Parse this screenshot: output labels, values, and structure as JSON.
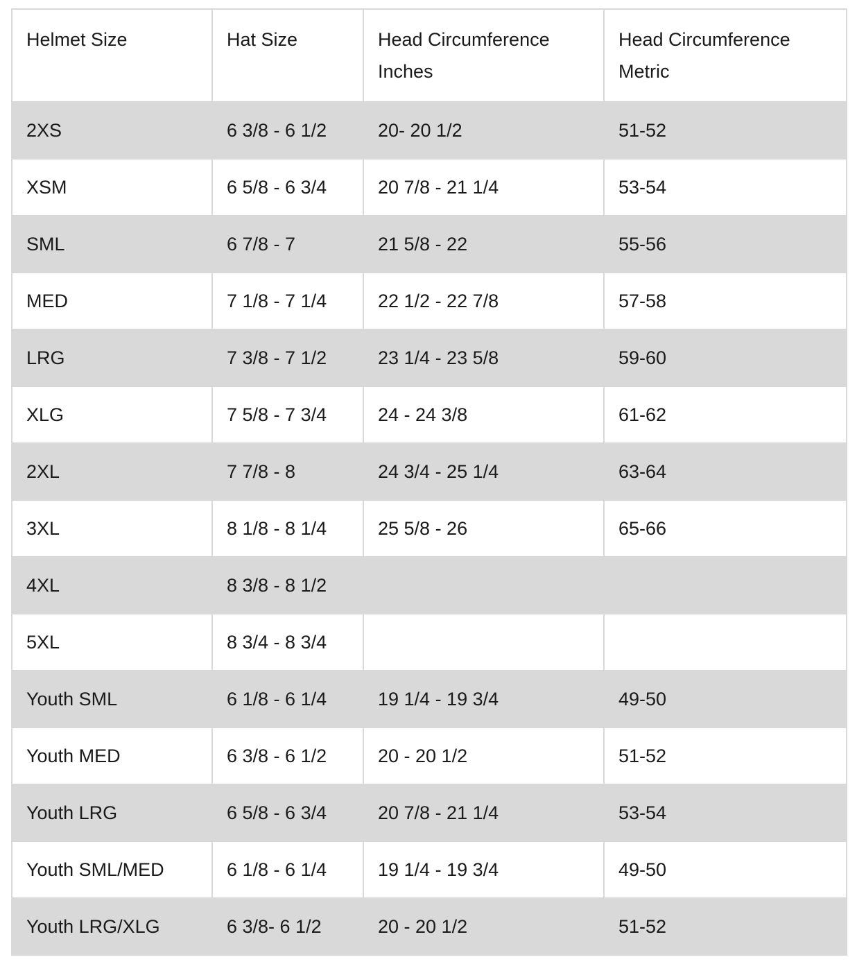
{
  "chart_data": {
    "type": "table",
    "title": "Helmet sizing chart",
    "columns": [
      "Helmet Size",
      "Hat Size",
      "Head Circumference Inches",
      "Head Circumference Metric"
    ],
    "rows": [
      [
        "2XS",
        "6 3/8 - 6 1/2",
        "20- 20 1/2",
        "51-52"
      ],
      [
        "XSM",
        "6 5/8 - 6 3/4",
        "20 7/8 - 21 1/4",
        "53-54"
      ],
      [
        "SML",
        "6 7/8 - 7",
        "21 5/8 - 22",
        "55-56"
      ],
      [
        "MED",
        "7 1/8 - 7 1/4",
        "22 1/2 - 22 7/8",
        "57-58"
      ],
      [
        "LRG",
        "7 3/8 - 7 1/2",
        "23 1/4 - 23 5/8",
        "59-60"
      ],
      [
        "XLG",
        "7 5/8 - 7 3/4",
        "24 - 24 3/8",
        "61-62"
      ],
      [
        "2XL",
        "7 7/8 - 8",
        "24 3/4 - 25 1/4",
        "63-64"
      ],
      [
        "3XL",
        "8 1/8 - 8 1/4",
        "25 5/8 - 26",
        "65-66"
      ],
      [
        "4XL",
        "8 3/8 - 8 1/2",
        "",
        ""
      ],
      [
        "5XL",
        "8 3/4 - 8 3/4",
        "",
        ""
      ],
      [
        "Youth SML",
        "6 1/8 - 6 1/4",
        "19 1/4 - 19 3/4",
        "49-50"
      ],
      [
        "Youth MED",
        "6 3/8 - 6 1/2",
        "20 - 20 1/2",
        "51-52"
      ],
      [
        "Youth LRG",
        "6 5/8 - 6 3/4",
        "20 7/8 - 21 1/4",
        "53-54"
      ],
      [
        "Youth SML/MED",
        "6 1/8 - 6 1/4",
        "19 1/4 - 19 3/4",
        "49-50"
      ],
      [
        "Youth LRG/XLG",
        "6 3/8- 6 1/2",
        "20 - 20 1/2",
        "51-52"
      ]
    ],
    "layout": {
      "row_shading": "alternating, first data row shaded",
      "grid": "on",
      "header_weight": "normal"
    },
    "colors": {
      "row_shade": "#d9d9d9",
      "border": "#d9d9d9",
      "text": "#1a1a1a",
      "background": "#ffffff"
    }
  }
}
